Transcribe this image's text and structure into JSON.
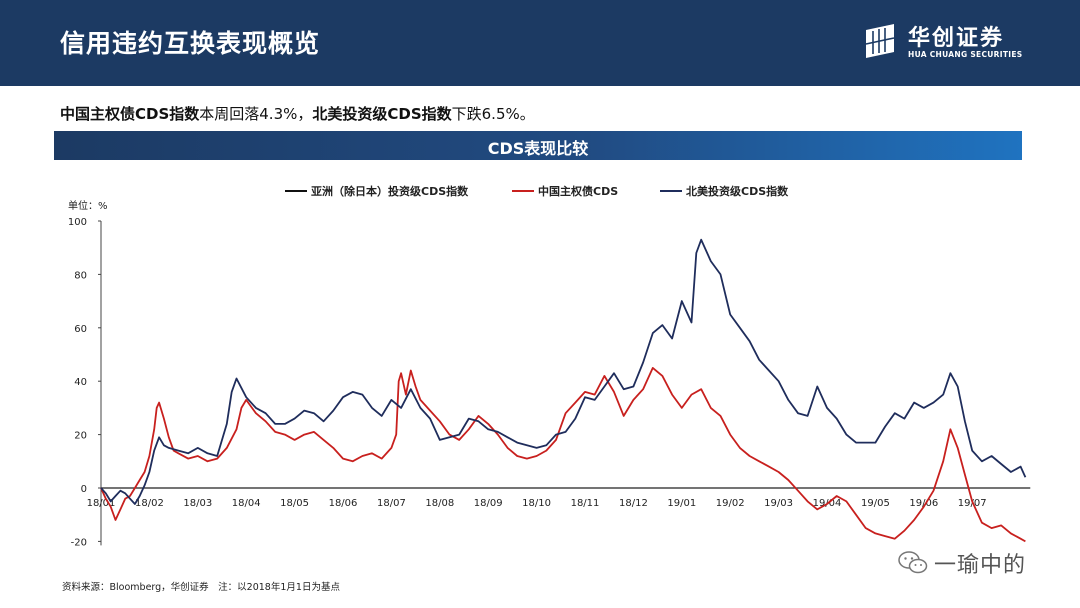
{
  "header": {
    "title": "信用违约互换表现概览",
    "logo_cn": "华创证券",
    "logo_en": "HUA CHUANG SECURITIES"
  },
  "summary": {
    "part1_bold": "中国主权债CDS指数",
    "part1_text": "本周回落4.3%，",
    "part2_bold": "北美投资级CDS指数",
    "part2_text": "下跌6.5%。"
  },
  "banner": {
    "title": "CDS表现比较"
  },
  "source": "资料来源：Bloomberg，华创证券　注：以2018年1月1日为基点",
  "watermark": {
    "text": "一瑜中的",
    "icon": "wechat-icon"
  },
  "colors": {
    "header_bg": "#1c3a63",
    "asia": "#111111",
    "china": "#c8201e",
    "na": "#1f2d5c"
  },
  "chart_data": {
    "type": "line",
    "unit_label": "单位：%",
    "ylim": [
      -20,
      100
    ],
    "y_ticks": [
      -20,
      0,
      20,
      40,
      60,
      80,
      100
    ],
    "x_ticks": [
      "18/01",
      "18/02",
      "18/03",
      "18/04",
      "18/05",
      "18/06",
      "18/07",
      "18/08",
      "18/09",
      "18/10",
      "18/11",
      "18/12",
      "19/01",
      "19/02",
      "19/03",
      "19/04",
      "19/05",
      "19/06",
      "19/07"
    ],
    "legend_position": "top-center",
    "grid": false,
    "series": [
      {
        "name": "亚洲（除日本）投资级CDS指数",
        "color": "#111111",
        "points": []
      },
      {
        "name": "中国主权债CDS",
        "color": "#c8201e",
        "points": [
          [
            0,
            0
          ],
          [
            0.1,
            -4
          ],
          [
            0.2,
            -7
          ],
          [
            0.3,
            -12
          ],
          [
            0.4,
            -8
          ],
          [
            0.5,
            -4
          ],
          [
            0.6,
            -3
          ],
          [
            0.7,
            0
          ],
          [
            0.8,
            3
          ],
          [
            0.9,
            6
          ],
          [
            1.0,
            12
          ],
          [
            1.1,
            22
          ],
          [
            1.15,
            30
          ],
          [
            1.2,
            32
          ],
          [
            1.3,
            26
          ],
          [
            1.4,
            19
          ],
          [
            1.5,
            14
          ],
          [
            1.6,
            13
          ],
          [
            1.8,
            11
          ],
          [
            2.0,
            12
          ],
          [
            2.2,
            10
          ],
          [
            2.4,
            11
          ],
          [
            2.6,
            15
          ],
          [
            2.8,
            22
          ],
          [
            2.9,
            30
          ],
          [
            3.0,
            33
          ],
          [
            3.2,
            28
          ],
          [
            3.4,
            25
          ],
          [
            3.6,
            21
          ],
          [
            3.8,
            20
          ],
          [
            4.0,
            18
          ],
          [
            4.2,
            20
          ],
          [
            4.4,
            21
          ],
          [
            4.6,
            18
          ],
          [
            4.8,
            15
          ],
          [
            5.0,
            11
          ],
          [
            5.2,
            10
          ],
          [
            5.4,
            12
          ],
          [
            5.6,
            13
          ],
          [
            5.8,
            11
          ],
          [
            6.0,
            15
          ],
          [
            6.1,
            20
          ],
          [
            6.15,
            40
          ],
          [
            6.2,
            43
          ],
          [
            6.3,
            35
          ],
          [
            6.4,
            44
          ],
          [
            6.5,
            38
          ],
          [
            6.6,
            33
          ],
          [
            6.8,
            29
          ],
          [
            7.0,
            25
          ],
          [
            7.2,
            20
          ],
          [
            7.4,
            18
          ],
          [
            7.6,
            22
          ],
          [
            7.8,
            27
          ],
          [
            8.0,
            24
          ],
          [
            8.2,
            20
          ],
          [
            8.4,
            15
          ],
          [
            8.6,
            12
          ],
          [
            8.8,
            11
          ],
          [
            9.0,
            12
          ],
          [
            9.2,
            14
          ],
          [
            9.4,
            18
          ],
          [
            9.6,
            28
          ],
          [
            9.8,
            32
          ],
          [
            10.0,
            36
          ],
          [
            10.2,
            35
          ],
          [
            10.4,
            42
          ],
          [
            10.6,
            36
          ],
          [
            10.8,
            27
          ],
          [
            11.0,
            33
          ],
          [
            11.2,
            37
          ],
          [
            11.4,
            45
          ],
          [
            11.6,
            42
          ],
          [
            11.8,
            35
          ],
          [
            12.0,
            30
          ],
          [
            12.2,
            35
          ],
          [
            12.4,
            37
          ],
          [
            12.6,
            30
          ],
          [
            12.8,
            27
          ],
          [
            13.0,
            20
          ],
          [
            13.2,
            15
          ],
          [
            13.4,
            12
          ],
          [
            13.6,
            10
          ],
          [
            13.8,
            8
          ],
          [
            14.0,
            6
          ],
          [
            14.2,
            3
          ],
          [
            14.4,
            -1
          ],
          [
            14.6,
            -5
          ],
          [
            14.8,
            -8
          ],
          [
            15.0,
            -6
          ],
          [
            15.2,
            -3
          ],
          [
            15.4,
            -5
          ],
          [
            15.6,
            -10
          ],
          [
            15.8,
            -15
          ],
          [
            16.0,
            -17
          ],
          [
            16.2,
            -18
          ],
          [
            16.4,
            -19
          ],
          [
            16.6,
            -16
          ],
          [
            16.8,
            -12
          ],
          [
            17.0,
            -7
          ],
          [
            17.2,
            -1
          ],
          [
            17.4,
            10
          ],
          [
            17.55,
            22
          ],
          [
            17.7,
            15
          ],
          [
            17.85,
            5
          ],
          [
            18.0,
            -5
          ],
          [
            18.2,
            -13
          ],
          [
            18.4,
            -15
          ],
          [
            18.6,
            -14
          ],
          [
            18.8,
            -17
          ],
          [
            19.0,
            -19
          ],
          [
            19.1,
            -20
          ]
        ]
      },
      {
        "name": "北美投资级CDS指数",
        "color": "#1f2d5c",
        "points": [
          [
            0,
            0
          ],
          [
            0.1,
            -2
          ],
          [
            0.2,
            -5
          ],
          [
            0.3,
            -3
          ],
          [
            0.4,
            -1
          ],
          [
            0.5,
            -2
          ],
          [
            0.6,
            -4
          ],
          [
            0.7,
            -6
          ],
          [
            0.8,
            -3
          ],
          [
            0.9,
            1
          ],
          [
            1.0,
            6
          ],
          [
            1.1,
            14
          ],
          [
            1.2,
            19
          ],
          [
            1.3,
            16
          ],
          [
            1.4,
            15
          ],
          [
            1.6,
            14
          ],
          [
            1.8,
            13
          ],
          [
            2.0,
            15
          ],
          [
            2.2,
            13
          ],
          [
            2.4,
            12
          ],
          [
            2.6,
            24
          ],
          [
            2.7,
            36
          ],
          [
            2.8,
            41
          ],
          [
            3.0,
            34
          ],
          [
            3.2,
            30
          ],
          [
            3.4,
            28
          ],
          [
            3.6,
            24
          ],
          [
            3.8,
            24
          ],
          [
            4.0,
            26
          ],
          [
            4.2,
            29
          ],
          [
            4.4,
            28
          ],
          [
            4.6,
            25
          ],
          [
            4.8,
            29
          ],
          [
            5.0,
            34
          ],
          [
            5.2,
            36
          ],
          [
            5.4,
            35
          ],
          [
            5.6,
            30
          ],
          [
            5.8,
            27
          ],
          [
            6.0,
            33
          ],
          [
            6.2,
            30
          ],
          [
            6.4,
            37
          ],
          [
            6.6,
            30
          ],
          [
            6.8,
            26
          ],
          [
            7.0,
            18
          ],
          [
            7.2,
            19
          ],
          [
            7.4,
            20
          ],
          [
            7.6,
            26
          ],
          [
            7.8,
            25
          ],
          [
            8.0,
            22
          ],
          [
            8.2,
            21
          ],
          [
            8.4,
            19
          ],
          [
            8.6,
            17
          ],
          [
            8.8,
            16
          ],
          [
            9.0,
            15
          ],
          [
            9.2,
            16
          ],
          [
            9.4,
            20
          ],
          [
            9.6,
            21
          ],
          [
            9.8,
            26
          ],
          [
            10.0,
            34
          ],
          [
            10.2,
            33
          ],
          [
            10.4,
            38
          ],
          [
            10.6,
            43
          ],
          [
            10.8,
            37
          ],
          [
            11.0,
            38
          ],
          [
            11.2,
            47
          ],
          [
            11.4,
            58
          ],
          [
            11.6,
            61
          ],
          [
            11.8,
            56
          ],
          [
            12.0,
            70
          ],
          [
            12.2,
            62
          ],
          [
            12.3,
            88
          ],
          [
            12.4,
            93
          ],
          [
            12.6,
            85
          ],
          [
            12.8,
            80
          ],
          [
            13.0,
            65
          ],
          [
            13.2,
            60
          ],
          [
            13.4,
            55
          ],
          [
            13.6,
            48
          ],
          [
            13.8,
            44
          ],
          [
            14.0,
            40
          ],
          [
            14.2,
            33
          ],
          [
            14.4,
            28
          ],
          [
            14.6,
            27
          ],
          [
            14.8,
            38
          ],
          [
            15.0,
            30
          ],
          [
            15.2,
            26
          ],
          [
            15.4,
            20
          ],
          [
            15.6,
            17
          ],
          [
            15.8,
            17
          ],
          [
            16.0,
            17
          ],
          [
            16.2,
            23
          ],
          [
            16.4,
            28
          ],
          [
            16.6,
            26
          ],
          [
            16.8,
            32
          ],
          [
            17.0,
            30
          ],
          [
            17.2,
            32
          ],
          [
            17.4,
            35
          ],
          [
            17.55,
            43
          ],
          [
            17.7,
            38
          ],
          [
            17.85,
            25
          ],
          [
            18.0,
            14
          ],
          [
            18.2,
            10
          ],
          [
            18.4,
            12
          ],
          [
            18.6,
            9
          ],
          [
            18.8,
            6
          ],
          [
            19.0,
            8
          ],
          [
            19.1,
            4
          ]
        ]
      }
    ]
  }
}
